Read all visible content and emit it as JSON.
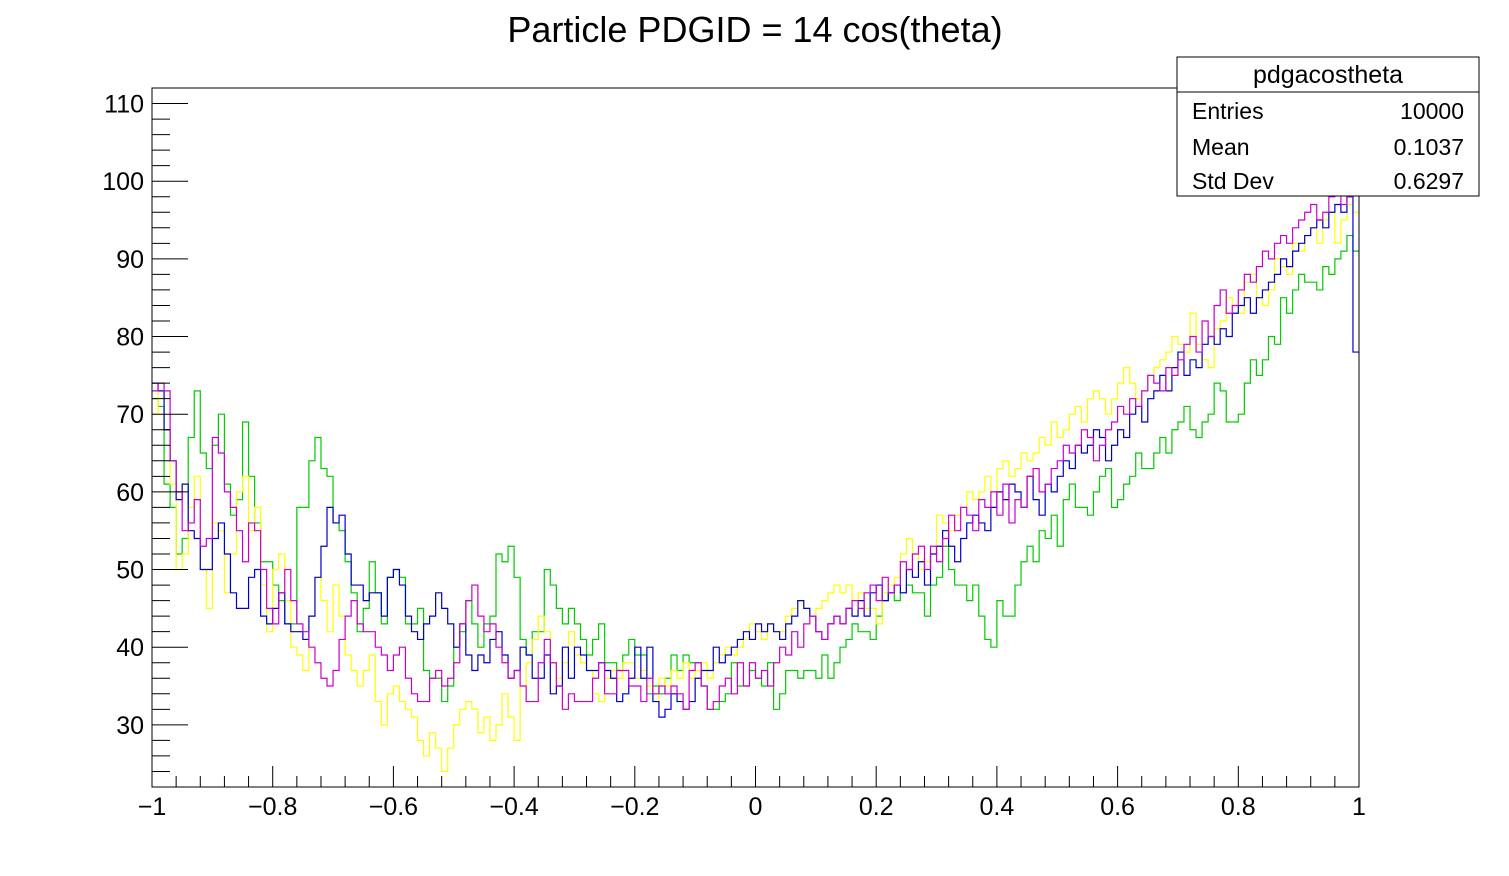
{
  "chart_data": {
    "type": "step-histogram",
    "title": "Particle PDGID = 14 cos(theta)",
    "xlabel": "",
    "ylabel": "",
    "xlim": [
      -1,
      1
    ],
    "ylim": [
      22,
      112
    ],
    "x_ticks": [
      -1,
      -0.8,
      -0.6,
      -0.4,
      -0.2,
      0,
      0.2,
      0.4,
      0.6,
      0.8,
      1
    ],
    "x_tick_labels": [
      "−1",
      "−0.8",
      "−0.6",
      "−0.4",
      "−0.2",
      "0",
      "0.2",
      "0.4",
      "0.6",
      "0.8",
      "1"
    ],
    "y_ticks": [
      30,
      40,
      50,
      60,
      70,
      80,
      90,
      100,
      110
    ],
    "y_tick_labels": [
      "30",
      "40",
      "50",
      "60",
      "70",
      "80",
      "90",
      "100",
      "110"
    ],
    "bins": 200,
    "series": [
      {
        "color": "#00cc00",
        "values": [
          72,
          71,
          61,
          58,
          52,
          54,
          67,
          73,
          65,
          63,
          66,
          70,
          61,
          57,
          59,
          69,
          62,
          56,
          51,
          51,
          48,
          46,
          43,
          43,
          58,
          58,
          64,
          67,
          63,
          62,
          56,
          55,
          51,
          47,
          42,
          45,
          51,
          47,
          43,
          49,
          50,
          49,
          43,
          43,
          45,
          37,
          36,
          36,
          33,
          35,
          40,
          42,
          46,
          43,
          40,
          43,
          44,
          52,
          51,
          53,
          49,
          41,
          39,
          42,
          42,
          50,
          48,
          45,
          43,
          45,
          43,
          41,
          39,
          41,
          43,
          38,
          38,
          37,
          39,
          41,
          39,
          39,
          34,
          35,
          34,
          36,
          39,
          37,
          39,
          38,
          38,
          35,
          32,
          32,
          33,
          34,
          38,
          35,
          35,
          37,
          36,
          35,
          38,
          32,
          34,
          37,
          37,
          36,
          37,
          37,
          36,
          39,
          36,
          38,
          40,
          41,
          43,
          42,
          42,
          41,
          44,
          46,
          47,
          46,
          47,
          48,
          47,
          47,
          44,
          48,
          49,
          53,
          50,
          48,
          48,
          46,
          48,
          44,
          41,
          40,
          46,
          44,
          44,
          48,
          51,
          53,
          51,
          55,
          54,
          57,
          53,
          59,
          61,
          58,
          58,
          57,
          60,
          62,
          63,
          58,
          59,
          61,
          62,
          65,
          63,
          63,
          65,
          67,
          65,
          68,
          69,
          71,
          68,
          67,
          69,
          70,
          74,
          73,
          69,
          69,
          70,
          74,
          77,
          75,
          77,
          80,
          79,
          85,
          83,
          86,
          88,
          87,
          87,
          86,
          89,
          88,
          90,
          91,
          93,
          91
        ]
      },
      {
        "color": "#ffff00",
        "values": [
          70,
          74,
          68,
          61,
          50,
          52,
          58,
          62,
          50,
          45,
          56,
          55,
          47,
          52,
          60,
          62,
          55,
          58,
          48,
          42,
          50,
          52,
          46,
          40,
          39,
          37,
          44,
          49,
          46,
          42,
          48,
          44,
          39,
          37,
          35,
          37,
          39,
          33,
          30,
          34,
          35,
          33,
          32,
          31,
          28,
          26,
          29,
          27,
          24,
          27,
          30,
          32,
          33,
          32,
          29,
          31,
          28,
          30,
          34,
          31,
          28,
          35,
          38,
          41,
          44,
          42,
          38,
          36,
          38,
          42,
          39,
          38,
          37,
          34,
          33,
          36,
          37,
          36,
          38,
          38,
          36,
          37,
          35,
          33,
          36,
          35,
          37,
          36,
          38,
          36,
          37,
          38,
          36,
          38,
          39,
          40,
          39,
          40,
          41,
          43,
          42,
          41,
          43,
          42,
          42,
          44,
          45,
          46,
          45,
          44,
          45,
          46,
          47,
          48,
          47,
          48,
          46,
          47,
          45,
          45,
          43,
          47,
          48,
          49,
          52,
          54,
          52,
          50,
          51,
          53,
          57,
          56,
          55,
          57,
          58,
          60,
          59,
          60,
          62,
          60,
          63,
          64,
          62,
          63,
          65,
          64,
          65,
          67,
          66,
          69,
          67,
          68,
          70,
          71,
          69,
          72,
          73,
          72,
          70,
          72,
          74,
          76,
          74,
          72,
          73,
          75,
          76,
          77,
          78,
          80,
          79,
          78,
          83,
          79,
          77,
          76,
          81,
          82,
          85,
          84,
          83,
          87,
          88,
          85,
          84,
          86,
          90,
          89,
          88,
          92,
          91,
          93,
          94,
          92,
          95,
          96,
          92,
          95,
          97,
          96
        ]
      },
      {
        "color": "#0000cc",
        "values": [
          74,
          73,
          68,
          64,
          59,
          61,
          55,
          54,
          50,
          50,
          54,
          56,
          52,
          47,
          45,
          45,
          49,
          50,
          44,
          43,
          45,
          47,
          43,
          42,
          42,
          41,
          44,
          49,
          53,
          58,
          56,
          57,
          52,
          48,
          48,
          46,
          47,
          47,
          44,
          49,
          50,
          48,
          44,
          42,
          41,
          43,
          44,
          47,
          45,
          43,
          40,
          43,
          39,
          37,
          39,
          38,
          41,
          42,
          39,
          36,
          37,
          40,
          39,
          36,
          36,
          39,
          34,
          35,
          40,
          36,
          40,
          39,
          37,
          37,
          38,
          37,
          36,
          33,
          34,
          36,
          40,
          36,
          40,
          33,
          31,
          32,
          34,
          33,
          32,
          33,
          36,
          37,
          37,
          40,
          38,
          39,
          40,
          41,
          42,
          41,
          43,
          42,
          43,
          42,
          41,
          43,
          44,
          46,
          45,
          44,
          42,
          41,
          43,
          44,
          43,
          45,
          44,
          46,
          44,
          47,
          48,
          46,
          47,
          48,
          47,
          50,
          49,
          51,
          48,
          52,
          53,
          55,
          53,
          51,
          54,
          56,
          57,
          56,
          55,
          58,
          60,
          59,
          61,
          60,
          58,
          62,
          59,
          57,
          61,
          60,
          62,
          64,
          63,
          66,
          65,
          66,
          68,
          67,
          64,
          66,
          68,
          67,
          70,
          71,
          69,
          72,
          73,
          75,
          73,
          76,
          78,
          75,
          77,
          76,
          79,
          80,
          79,
          81,
          80,
          83,
          84,
          85,
          83,
          85,
          86,
          87,
          88,
          90,
          89,
          91,
          92,
          93,
          94,
          95,
          94,
          96,
          97,
          96,
          98,
          78
        ]
      },
      {
        "color": "#cc00cc",
        "values": [
          73,
          74,
          73,
          64,
          60,
          55,
          56,
          59,
          53,
          54,
          67,
          65,
          60,
          58,
          55,
          51,
          56,
          55,
          50,
          45,
          43,
          47,
          50,
          46,
          43,
          42,
          40,
          38,
          36,
          35,
          37,
          41,
          44,
          46,
          43,
          42,
          42,
          40,
          39,
          37,
          39,
          40,
          36,
          34,
          33,
          33,
          36,
          37,
          35,
          36,
          38,
          43,
          46,
          48,
          44,
          42,
          43,
          40,
          38,
          36,
          37,
          35,
          33,
          33,
          38,
          41,
          38,
          35,
          32,
          34,
          33,
          33,
          33,
          36,
          38,
          34,
          34,
          37,
          37,
          35,
          35,
          33,
          36,
          34,
          35,
          34,
          35,
          34,
          32,
          37,
          38,
          35,
          32,
          33,
          35,
          36,
          34,
          38,
          35,
          38,
          36,
          37,
          35,
          38,
          40,
          39,
          42,
          40,
          43,
          44,
          42,
          41,
          43,
          44,
          43,
          45,
          46,
          45,
          47,
          48,
          46,
          49,
          47,
          48,
          51,
          50,
          52,
          53,
          50,
          53,
          51,
          54,
          57,
          55,
          58,
          57,
          55,
          59,
          58,
          60,
          57,
          61,
          56,
          59,
          58,
          62,
          63,
          60,
          61,
          63,
          64,
          66,
          65,
          66,
          68,
          67,
          64,
          66,
          68,
          69,
          71,
          70,
          72,
          71,
          73,
          75,
          74,
          73,
          76,
          75,
          77,
          79,
          80,
          78,
          82,
          80,
          84,
          86,
          83,
          84,
          86,
          88,
          87,
          89,
          91,
          90,
          92,
          93,
          92,
          94,
          95,
          96,
          97,
          95,
          96,
          98,
          99,
          97,
          98,
          100
        ]
      }
    ],
    "stats_box": {
      "name": "pdgacostheta",
      "rows": [
        {
          "label": "Entries",
          "value": "10000"
        },
        {
          "label": "Mean",
          "value": "0.1037"
        },
        {
          "label": "Std Dev",
          "value": "0.6297"
        }
      ]
    }
  }
}
